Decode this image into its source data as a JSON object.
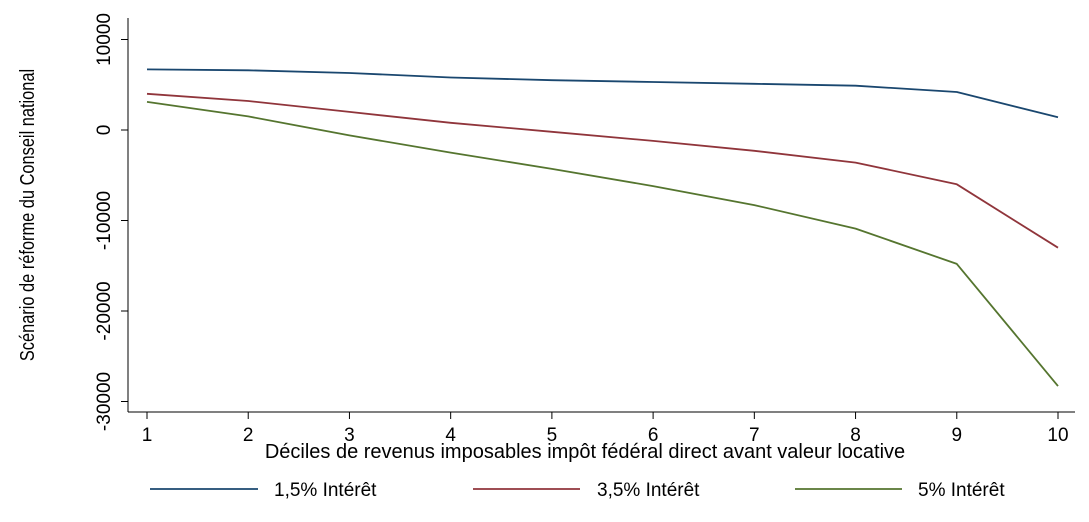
{
  "chart_data": {
    "type": "line",
    "x": [
      1,
      2,
      3,
      4,
      5,
      6,
      7,
      8,
      9,
      10
    ],
    "x_ticks": [
      1,
      2,
      3,
      4,
      5,
      6,
      7,
      8,
      9,
      10
    ],
    "xlabel": "Déciles de revenus imposables impôt fédéral direct avant valeur locative",
    "ylabel": "Scénario de réforme du  Conseil national",
    "y_ticks": [
      10000,
      0,
      -10000,
      -20000,
      -30000
    ],
    "xlim": [
      1,
      10
    ],
    "ylim": [
      -30000,
      10000
    ],
    "grid": false,
    "legend_position": "bottom",
    "series": [
      {
        "name": "1,5% Intérêt",
        "color": "#1a476f",
        "values": [
          6700,
          6600,
          6300,
          5800,
          5500,
          5300,
          5100,
          4900,
          4200,
          1400
        ]
      },
      {
        "name": "3,5% Intérêt",
        "color": "#90353b",
        "values": [
          4000,
          3200,
          2000,
          800,
          -200,
          -1200,
          -2300,
          -3600,
          -6000,
          -13000
        ]
      },
      {
        "name": "5% Intérêt",
        "color": "#55752f",
        "values": [
          3100,
          1500,
          -600,
          -2500,
          -4300,
          -6200,
          -8300,
          -10900,
          -14800,
          -28300
        ]
      }
    ]
  }
}
